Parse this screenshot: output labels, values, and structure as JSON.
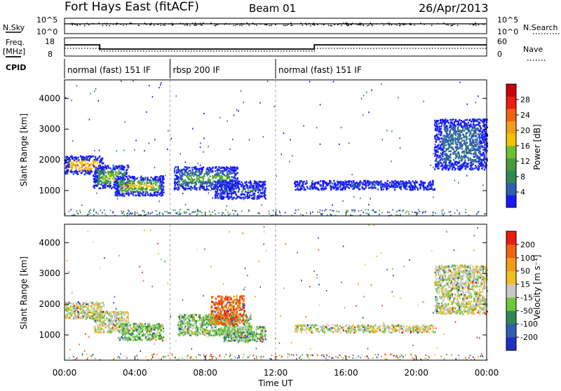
{
  "header": {
    "station": "Fort Hays East (fitACF)",
    "beam": "Beam 01",
    "date": "26/Apr/2013"
  },
  "noise_panel": {
    "left_label": "N.Sky",
    "right_label": "N.Search",
    "ticks_left": [
      "10^5",
      "10^0"
    ],
    "ticks_right": [
      "10^5",
      "10^0"
    ]
  },
  "freq_panel": {
    "left_label": "Freq.",
    "left_unit": "[MHz]",
    "left_ticks": [
      "18",
      "8"
    ],
    "right_label": "Nave",
    "right_ticks": [
      "60",
      "0"
    ],
    "freq_steps": [
      {
        "t0": 0,
        "t1": 2.0,
        "f": 14
      },
      {
        "t0": 2.0,
        "t1": 14.2,
        "f": 11
      },
      {
        "t0": 14.2,
        "t1": 24,
        "f": 14
      }
    ]
  },
  "cpid": {
    "label": "CPID",
    "segments": [
      {
        "t0": 0,
        "t1": 6.0,
        "name": "normal (fast) 151 IF"
      },
      {
        "t0": 6.0,
        "t1": 12.0,
        "name": "rbsp 200 IF"
      },
      {
        "t0": 12.0,
        "t1": 24,
        "name": "normal (fast) 151 IF"
      }
    ]
  },
  "colors": {
    "power": [
      "#1818ff",
      "#2f5fb0",
      "#2d8a55",
      "#4a9a3a",
      "#6cc030",
      "#f2c300",
      "#f59c1a",
      "#f06410",
      "#ee1c10",
      "#c8000a"
    ],
    "velocity": [
      "#2030c0",
      "#2f5fb0",
      "#2d8a55",
      "#70c838",
      "#c8c8c8",
      "#f0c020",
      "#f59a18",
      "#f06410",
      "#ee1c10"
    ]
  },
  "chart_data": [
    {
      "type": "heatmap",
      "name": "power",
      "ylabel": "Slant Range [km]",
      "yticks": [
        "4000",
        "3000",
        "2000",
        "1000"
      ],
      "colorbar_label": "Power [dB]",
      "colorbar_ticks": [
        "28",
        "24",
        "20",
        "16",
        "12",
        "8",
        "4"
      ],
      "x_range_hours": [
        0,
        24
      ],
      "y_range_km": [
        180,
        4600
      ],
      "regions": [
        {
          "t0": 0.0,
          "t1": 2.2,
          "r0": 1550,
          "r1": 2150,
          "level": 7
        },
        {
          "t0": 1.6,
          "t1": 3.6,
          "r0": 1100,
          "r1": 1850,
          "level": 4
        },
        {
          "t0": 2.8,
          "t1": 5.6,
          "r0": 850,
          "r1": 1500,
          "level": 5
        },
        {
          "t0": 6.2,
          "t1": 9.8,
          "r0": 1050,
          "r1": 1800,
          "level": 3
        },
        {
          "t0": 8.5,
          "t1": 11.4,
          "r0": 750,
          "r1": 1350,
          "level": 2
        },
        {
          "t0": 13.0,
          "t1": 21.0,
          "r0": 1050,
          "r1": 1350,
          "level": 2
        },
        {
          "t0": 21.0,
          "t1": 24.0,
          "r0": 1700,
          "r1": 3350,
          "level": 1
        }
      ]
    },
    {
      "type": "heatmap",
      "name": "velocity",
      "xlabel": "Time UT",
      "xticks": [
        "00:00",
        "04:00",
        "08:00",
        "12:00",
        "16:00",
        "20:00",
        "00:00"
      ],
      "ylabel": "Slant Range [km]",
      "yticks": [
        "4000",
        "3000",
        "2000",
        "1000"
      ],
      "colorbar_label": "Velocity [m s⁻¹]",
      "colorbar_ticks": [
        "200",
        "100",
        "50",
        "15",
        "-15",
        "-50",
        "-100",
        "-200"
      ],
      "x_range_hours": [
        0,
        24
      ],
      "y_range_km": [
        180,
        4600
      ],
      "regions": [
        {
          "t0": 0.0,
          "t1": 2.2,
          "r0": 1550,
          "r1": 2100,
          "level": 4
        },
        {
          "t0": 1.6,
          "t1": 3.6,
          "r0": 1100,
          "r1": 1800,
          "level": 4
        },
        {
          "t0": 3.0,
          "t1": 5.6,
          "r0": 850,
          "r1": 1400,
          "level": 3
        },
        {
          "t0": 6.4,
          "t1": 10.6,
          "r0": 1000,
          "r1": 1700,
          "level": 3
        },
        {
          "t0": 9.0,
          "t1": 11.4,
          "r0": 800,
          "r1": 1300,
          "level": 3
        },
        {
          "t0": 8.3,
          "t1": 10.2,
          "r0": 1350,
          "r1": 2300,
          "level": 7
        },
        {
          "t0": 13.0,
          "t1": 21.0,
          "r0": 1100,
          "r1": 1350,
          "level": 4
        },
        {
          "t0": 21.0,
          "t1": 24.0,
          "r0": 1700,
          "r1": 3300,
          "level": 4
        }
      ]
    }
  ]
}
